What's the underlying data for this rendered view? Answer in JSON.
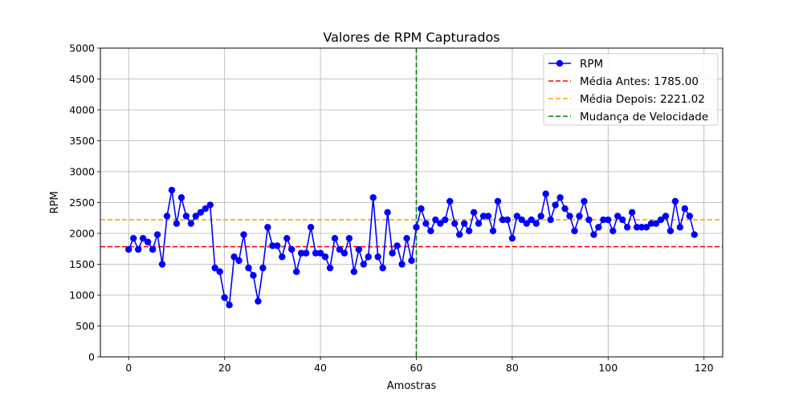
{
  "chart_data": {
    "type": "line",
    "title": "Valores de RPM Capturados",
    "xlabel": "Amostras",
    "ylabel": "RPM",
    "xlim": [
      -5.9,
      123.9
    ],
    "ylim": [
      0,
      5000
    ],
    "xticks": [
      0,
      20,
      40,
      60,
      80,
      100,
      120
    ],
    "yticks": [
      0,
      500,
      1000,
      1500,
      2000,
      2500,
      3000,
      3500,
      4000,
      4500,
      5000
    ],
    "grid": true,
    "legend_position": "top-right",
    "series": [
      {
        "name": "RPM",
        "color": "#0000ff",
        "marker": "circle",
        "x": [
          0,
          1,
          2,
          3,
          4,
          5,
          6,
          7,
          8,
          9,
          10,
          11,
          12,
          13,
          14,
          15,
          16,
          17,
          18,
          19,
          20,
          21,
          22,
          23,
          24,
          25,
          26,
          27,
          28,
          29,
          30,
          31,
          32,
          33,
          34,
          35,
          36,
          37,
          38,
          39,
          40,
          41,
          42,
          43,
          44,
          45,
          46,
          47,
          48,
          49,
          50,
          51,
          52,
          53,
          54,
          55,
          56,
          57,
          58,
          59,
          60,
          61,
          62,
          63,
          64,
          65,
          66,
          67,
          68,
          69,
          70,
          71,
          72,
          73,
          74,
          75,
          76,
          77,
          78,
          79,
          80,
          81,
          82,
          83,
          84,
          85,
          86,
          87,
          88,
          89,
          90,
          91,
          92,
          93,
          94,
          95,
          96,
          97,
          98,
          99,
          100,
          101,
          102,
          103,
          104,
          105,
          106,
          107,
          108,
          109,
          110,
          111,
          112,
          113,
          114,
          115,
          116,
          117,
          118
        ],
        "values": [
          1740,
          1920,
          1740,
          1920,
          1860,
          1740,
          1980,
          1500,
          2280,
          2700,
          2160,
          2580,
          2280,
          2160,
          2280,
          2340,
          2400,
          2460,
          1440,
          1380,
          960,
          840,
          1620,
          1560,
          1980,
          1440,
          1320,
          900,
          1440,
          2100,
          1800,
          1800,
          1620,
          1920,
          1740,
          1380,
          1680,
          1680,
          2100,
          1680,
          1680,
          1620,
          1440,
          1920,
          1740,
          1680,
          1920,
          1380,
          1740,
          1500,
          1620,
          2580,
          1620,
          1440,
          2340,
          1680,
          1800,
          1500,
          1920,
          1560,
          2100,
          2400,
          2160,
          2040,
          2220,
          2160,
          2220,
          2520,
          2160,
          1980,
          2160,
          2040,
          2340,
          2160,
          2280,
          2280,
          2040,
          2520,
          2220,
          2220,
          1920,
          2280,
          2220,
          2160,
          2220,
          2160,
          2280,
          2640,
          2220,
          2460,
          2580,
          2400,
          2280,
          2040,
          2280,
          2520,
          2220,
          1980,
          2100,
          2220,
          2220,
          2040,
          2280,
          2220,
          2100,
          2340,
          2100,
          2100,
          2100,
          2160,
          2160,
          2220,
          2280,
          2040,
          2520,
          2100,
          2400,
          2280,
          1980
        ]
      },
      {
        "name": "Média Antes: 1785.00",
        "color": "#ff0000",
        "style": "dashed",
        "orientation": "horizontal",
        "value": 1785.0
      },
      {
        "name": "Média Depois: 2221.02",
        "color": "#ffa500",
        "style": "dashed",
        "orientation": "horizontal",
        "value": 2221.02
      },
      {
        "name": "Mudança de Velocidade",
        "color": "#008000",
        "style": "dashed",
        "orientation": "vertical",
        "value": 60
      }
    ]
  }
}
